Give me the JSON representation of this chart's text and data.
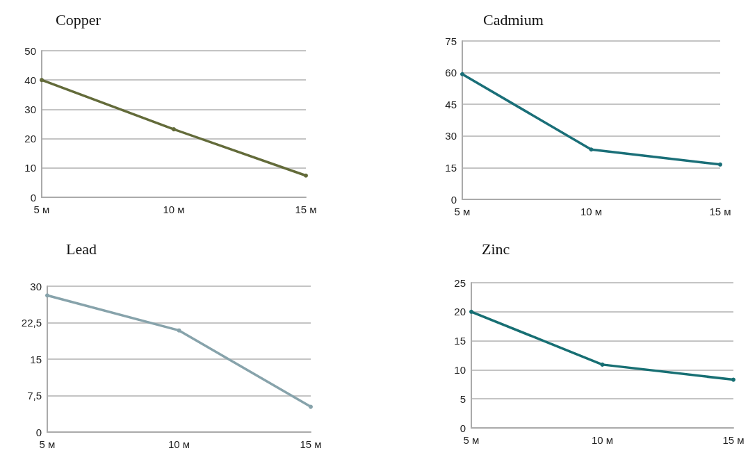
{
  "chart_data": [
    {
      "type": "line",
      "title": "Copper",
      "categories": [
        "5 м",
        "10 м",
        "15 м"
      ],
      "series": [
        {
          "color": "#636b3a",
          "values": [
            40,
            23.2,
            7.4
          ]
        }
      ],
      "ylim": [
        0,
        50
      ],
      "yticks": [
        0,
        10,
        20,
        30,
        40,
        50
      ],
      "grid": "y",
      "marker": "circle"
    },
    {
      "type": "line",
      "title": "Cadmium",
      "categories": [
        "5 м",
        "10 м",
        "15 м"
      ],
      "series": [
        {
          "color": "#1a6f78",
          "values": [
            59.3,
            23.6,
            16.5
          ]
        }
      ],
      "ylim": [
        0,
        75
      ],
      "yticks": [
        0,
        15,
        30,
        45,
        60,
        75
      ],
      "grid": "y",
      "marker": "circle"
    },
    {
      "type": "line",
      "title": "Lead",
      "categories": [
        "5 м",
        "10 м",
        "15 м"
      ],
      "series": [
        {
          "color": "#87a3ab",
          "values": [
            28.1,
            20.9,
            5.2
          ]
        }
      ],
      "ylim": [
        0,
        30
      ],
      "yticks": [
        0,
        {
          "value": 7.5,
          "label": "7,5"
        },
        15,
        {
          "value": 22.5,
          "label": "22,5"
        },
        30
      ],
      "grid": "y",
      "marker": "circle"
    },
    {
      "type": "line",
      "title": "Zinc",
      "categories": [
        "5 м",
        "10 м",
        "15 м"
      ],
      "series": [
        {
          "color": "#176f73",
          "values": [
            20,
            10.9,
            8.3
          ]
        }
      ],
      "ylim": [
        0,
        25
      ],
      "yticks": [
        0,
        5,
        10,
        15,
        20,
        25
      ],
      "grid": "y",
      "marker": "circle"
    }
  ]
}
